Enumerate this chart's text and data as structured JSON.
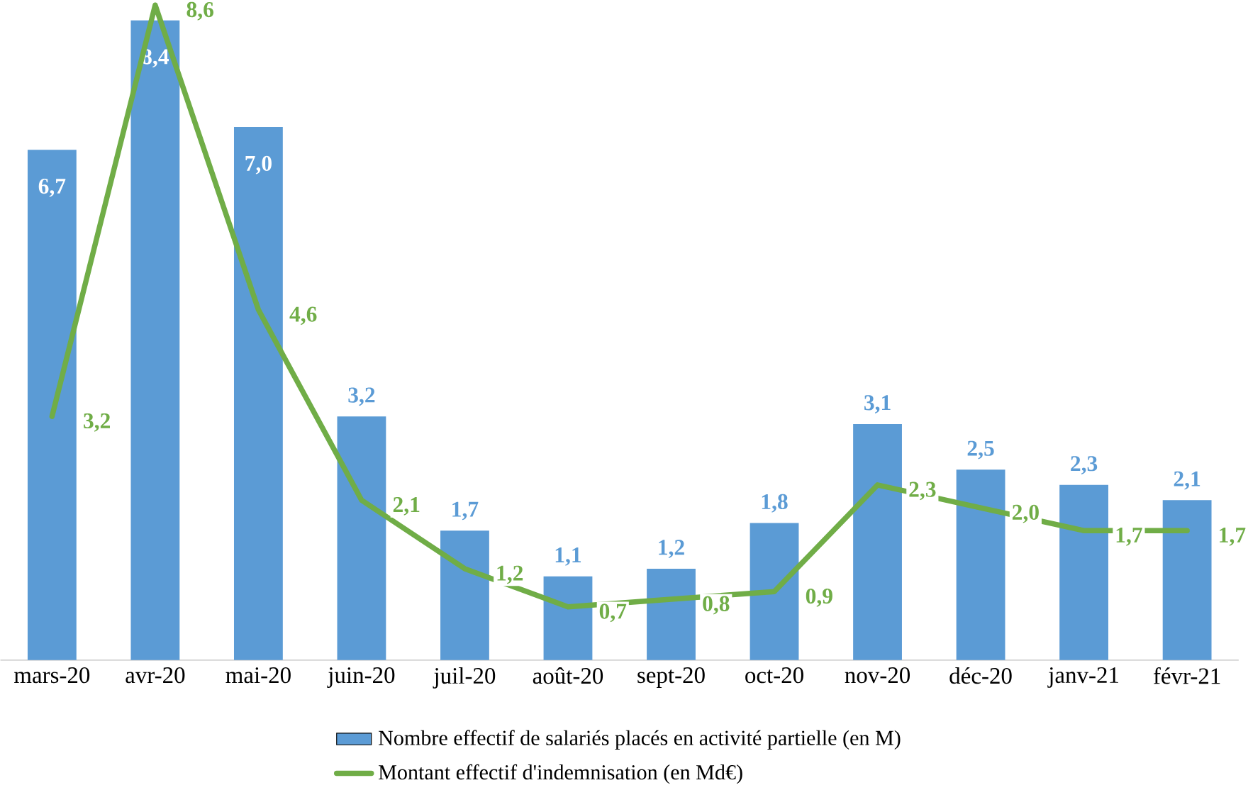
{
  "chart_data": {
    "type": "bar",
    "categories": [
      "mars-20",
      "avr-20",
      "mai-20",
      "juin-20",
      "juil-20",
      "août-20",
      "sept-20",
      "oct-20",
      "nov-20",
      "déc-20",
      "janv-21",
      "févr-21"
    ],
    "series": [
      {
        "name": "Nombre effectif de salariés placés en activité partielle (en M)",
        "type": "bar",
        "color": "#5b9bd5",
        "values": [
          6.7,
          8.4,
          7.0,
          3.2,
          1.7,
          1.1,
          1.2,
          1.8,
          3.1,
          2.5,
          2.3,
          2.1
        ],
        "value_labels": [
          "6,7",
          "8,4",
          "7,0",
          "3,2",
          "1,7",
          "1,1",
          "1,2",
          "1,8",
          "3,1",
          "2,5",
          "2,3",
          "2,1"
        ]
      },
      {
        "name": "Montant effectif d'indemnisation (en Md€)",
        "type": "line",
        "color": "#70ad47",
        "values": [
          3.2,
          8.6,
          4.6,
          2.1,
          1.2,
          0.7,
          0.8,
          0.9,
          2.3,
          2.0,
          1.7,
          1.7
        ],
        "value_labels": [
          "3,2",
          "8,6",
          "4,6",
          "2,1",
          "1,2",
          "0,7",
          "0,8",
          "0,9",
          "2,3",
          "2,0",
          "1,7",
          "1,7"
        ]
      }
    ],
    "legend": "bottom"
  }
}
